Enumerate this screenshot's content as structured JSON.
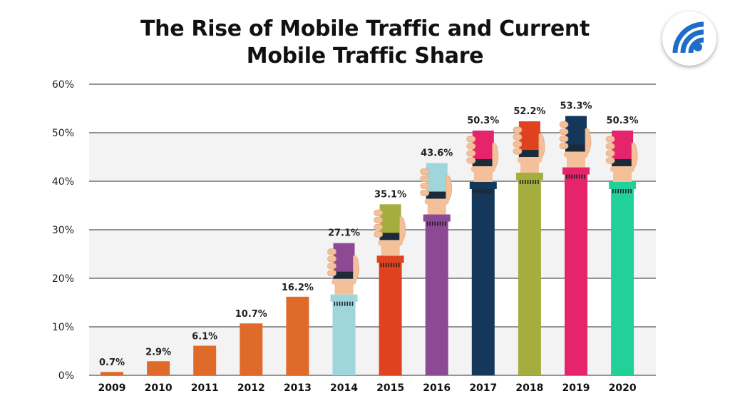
{
  "chart_data": {
    "type": "bar",
    "title": "The Rise of Mobile Traffic and Current Mobile Traffic Share",
    "title_lines": [
      "The Rise of Mobile Traffic and Current",
      "Mobile Traffic Share"
    ],
    "xlabel": "",
    "ylabel": "",
    "ylim": [
      0,
      60
    ],
    "y_ticks": [
      0,
      10,
      20,
      30,
      40,
      50,
      60
    ],
    "y_tick_labels": [
      "0%",
      "10%",
      "20%",
      "30%",
      "40%",
      "50%",
      "60%"
    ],
    "grid": true,
    "categories": [
      "2009",
      "2010",
      "2011",
      "2012",
      "2013",
      "2014",
      "2015",
      "2016",
      "2017",
      "2018",
      "2019",
      "2020"
    ],
    "values": [
      0.7,
      2.9,
      6.1,
      10.7,
      16.2,
      27.1,
      35.1,
      43.6,
      50.3,
      52.2,
      53.3,
      50.3
    ],
    "value_labels": [
      "0.7%",
      "2.9%",
      "6.1%",
      "10.7%",
      "16.2%",
      "27.1%",
      "35.1%",
      "43.6%",
      "50.3%",
      "52.2%",
      "53.3%",
      "50.3%"
    ],
    "bar_colors": [
      "#e06a2a",
      "#e06a2a",
      "#e06a2a",
      "#e06a2a",
      "#e06a2a",
      "#9fd6dc",
      "#e0421f",
      "#8c4a94",
      "#14375a",
      "#a4ad3d",
      "#e6246b",
      "#22d19a"
    ],
    "phone_colors": [
      "",
      "",
      "",
      "",
      "",
      "#8c4a94",
      "#a4ad3d",
      "#9fd6dc",
      "#e6246b",
      "#e0421f",
      "#14375a",
      "#e6246b"
    ],
    "phone_hands": [
      false,
      false,
      false,
      false,
      false,
      true,
      true,
      true,
      true,
      true,
      true,
      true
    ],
    "hand_color": "#f4c09a"
  },
  "logo": {
    "icon": "wifi-signal-icon",
    "accent": "#1e6ec8"
  }
}
